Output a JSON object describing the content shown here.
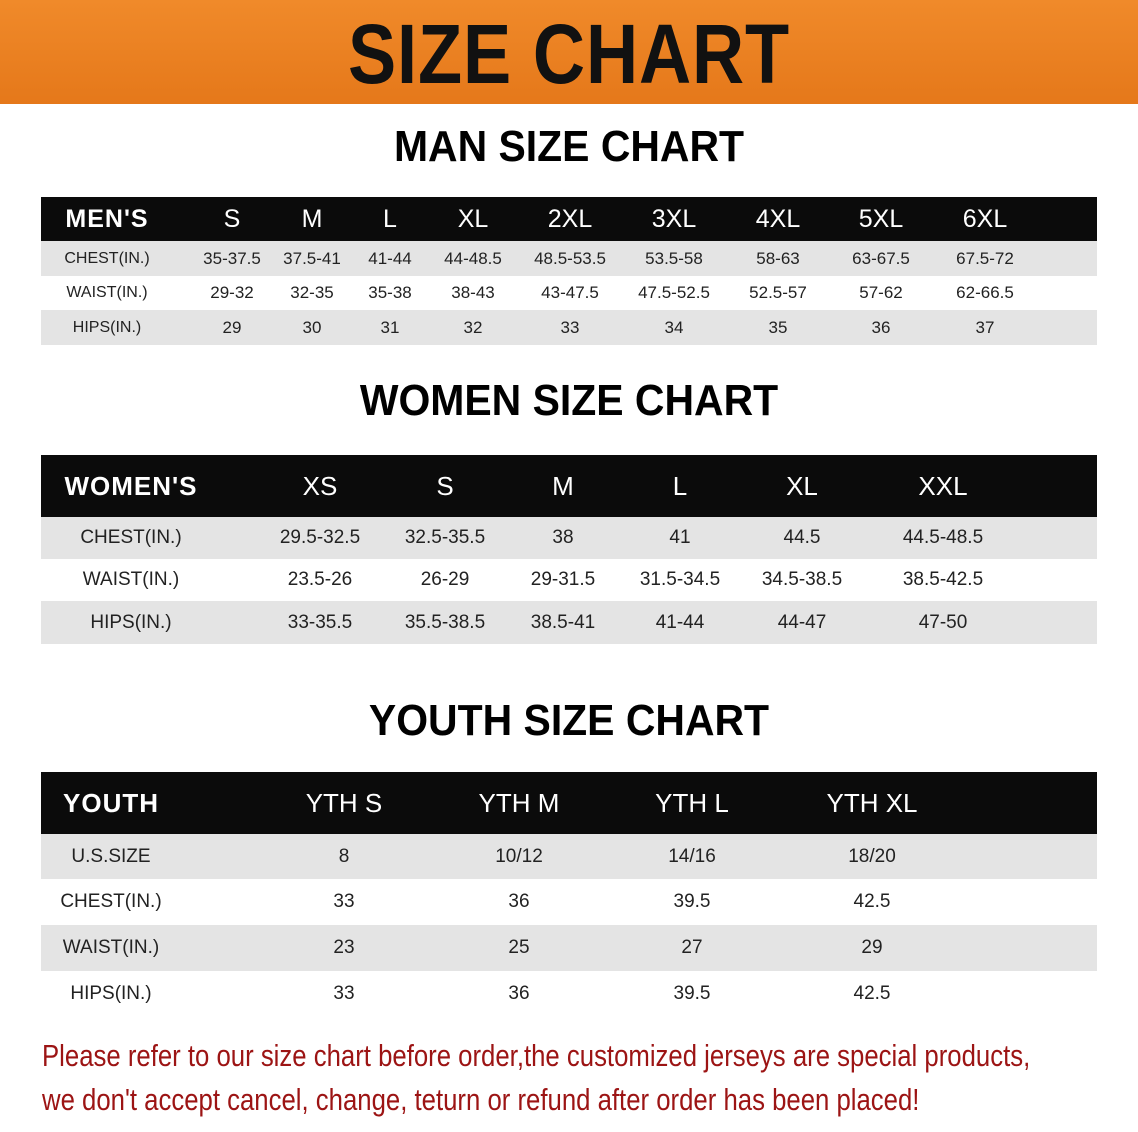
{
  "title": "SIZE CHART",
  "colors": {
    "banner": "#e8801f",
    "header_row": "#0b0b0b",
    "stripe": "#e4e4e4",
    "note": "#9c1414"
  },
  "men": {
    "heading": "MAN SIZE CHART",
    "headers": [
      "MEN'S",
      "S",
      "M",
      "L",
      "XL",
      "2XL",
      "3XL",
      "4XL",
      "5XL",
      "6XL"
    ],
    "rows": [
      [
        "CHEST(IN.)",
        "35-37.5",
        "37.5-41",
        "41-44",
        "44-48.5",
        "48.5-53.5",
        "53.5-58",
        "58-63",
        "63-67.5",
        "67.5-72"
      ],
      [
        "WAIST(IN.)",
        "29-32",
        "32-35",
        "35-38",
        "38-43",
        "43-47.5",
        "47.5-52.5",
        "52.5-57",
        "57-62",
        "62-66.5"
      ],
      [
        "HIPS(IN.)",
        "29",
        "30",
        "31",
        "32",
        "33",
        "34",
        "35",
        "36",
        "37"
      ]
    ]
  },
  "women": {
    "heading": "WOMEN SIZE CHART",
    "headers": [
      "WOMEN'S",
      "XS",
      "S",
      "M",
      "L",
      "XL",
      "XXL"
    ],
    "rows": [
      [
        "CHEST(IN.)",
        "29.5-32.5",
        "32.5-35.5",
        "38",
        "41",
        "44.5",
        "44.5-48.5"
      ],
      [
        "WAIST(IN.)",
        "23.5-26",
        "26-29",
        "29-31.5",
        "31.5-34.5",
        "34.5-38.5",
        "38.5-42.5"
      ],
      [
        "HIPS(IN.)",
        "33-35.5",
        "35.5-38.5",
        "38.5-41",
        "41-44",
        "44-47",
        "47-50"
      ]
    ]
  },
  "youth": {
    "heading": "YOUTH SIZE CHART",
    "headers": [
      "YOUTH",
      "YTH S",
      "YTH M",
      "YTH L",
      "YTH XL"
    ],
    "rows": [
      [
        "U.S.SIZE",
        "8",
        "10/12",
        "14/16",
        "18/20"
      ],
      [
        "CHEST(IN.)",
        "33",
        "36",
        "39.5",
        "42.5"
      ],
      [
        "WAIST(IN.)",
        "23",
        "25",
        "27",
        "29"
      ],
      [
        "HIPS(IN.)",
        "33",
        "36",
        "39.5",
        "42.5"
      ]
    ]
  },
  "note": {
    "line1": "Please refer to our size chart before order,the customized jerseys are special products,",
    "line2": "we don't accept cancel, change, teturn or refund after order has been placed!"
  }
}
